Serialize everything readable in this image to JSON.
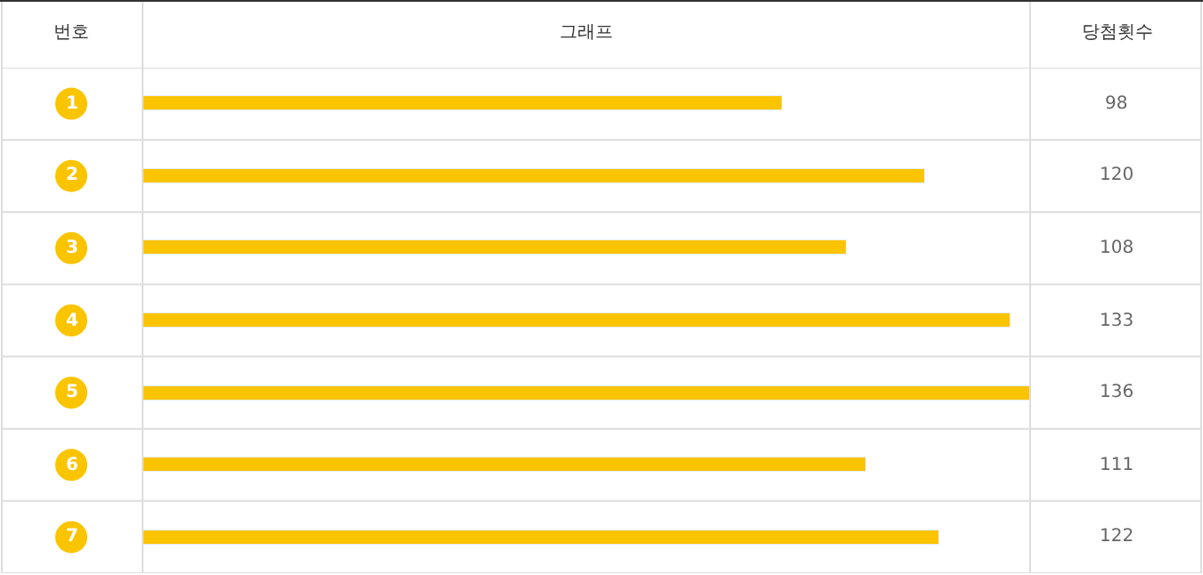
{
  "chart_data": {
    "type": "bar",
    "orientation": "horizontal",
    "title": "그래프",
    "ylabel": "번호",
    "annotations": [
      "당첨횟수"
    ],
    "categories": [
      "1",
      "2",
      "3",
      "4",
      "5",
      "6",
      "7"
    ],
    "values": [
      98,
      120,
      108,
      133,
      136,
      111,
      122
    ],
    "color": "#fbc400",
    "xlim": [
      0,
      136
    ],
    "tick_labels": "y",
    "data_labels": true
  }
}
